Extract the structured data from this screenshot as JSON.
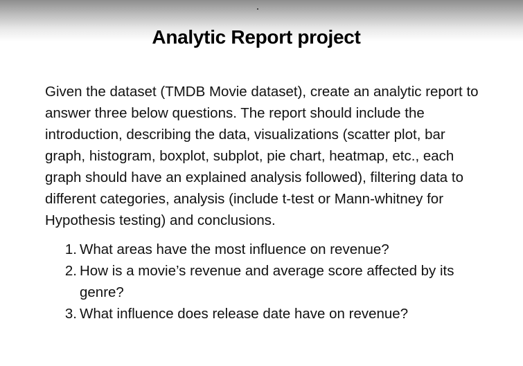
{
  "document": {
    "title": "Analytic Report project",
    "paragraph": "Given the dataset (TMDB Movie dataset), create an analytic report to answer three below questions. The report should include the introduction, describing the data, visualizations (scatter plot, bar graph, histogram, boxplot, subplot, pie chart, heatmap, etc., each graph should have an explained analysis followed), filtering data to different categories, analysis (include t-test or Mann-whitney for Hypothesis testing) and conclusions.",
    "questions": [
      {
        "number": "1.",
        "text": "What areas have the most influence on revenue?"
      },
      {
        "number": "2.",
        "text": "How is a movie’s revenue and average score affected by its genre?"
      },
      {
        "number": "3.",
        "text": "What influence does release date have on revenue?"
      }
    ]
  }
}
